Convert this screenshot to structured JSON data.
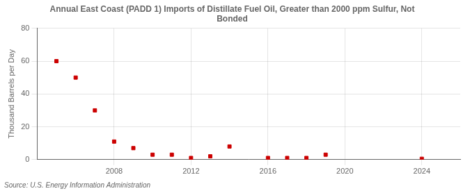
{
  "chart_data": {
    "type": "scatter",
    "title": "Annual East Coast (PADD 1) Imports of Distillate Fuel Oil, Greater than 2000 ppm Sulfur, Not\nBonded",
    "ylabel": "Thousand Barrels per Day",
    "annotations": [
      "Source: U.S. Energy Information Administration"
    ],
    "x": [
      2005,
      2006,
      2007,
      2008,
      2009,
      2010,
      2011,
      2012,
      2013,
      2014,
      2016,
      2017,
      2018,
      2019,
      2024
    ],
    "values": [
      60,
      50,
      30,
      11,
      7,
      3,
      3,
      1,
      2,
      8,
      1,
      1,
      1,
      3,
      0.5
    ],
    "color": "#cc0000",
    "marker": "square",
    "xlim": [
      2004,
      2026
    ],
    "xticks": [
      2008,
      2012,
      2016,
      2020,
      2024
    ],
    "ylim": [
      0,
      80
    ],
    "yticks": [
      0,
      20,
      40,
      60,
      80
    ],
    "grid": true
  }
}
